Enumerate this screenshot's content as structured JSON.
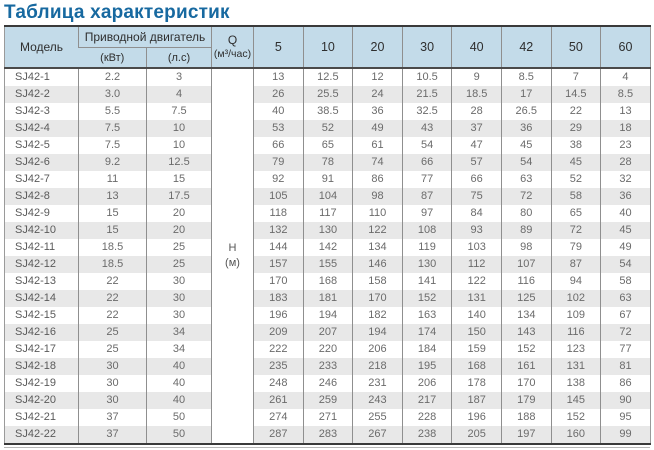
{
  "title": "Таблица характеристик",
  "colors": {
    "title_text": "#1769a0",
    "header_bg": "#c3dbe9",
    "row_stripe": "#e8e8e8",
    "border_dark": "#3a3a3a",
    "grid_line": "#8f8f8f"
  },
  "table": {
    "header": {
      "model": "Модель",
      "motor_group": "Приводной двигатель",
      "motor_kw": "(кВт)",
      "motor_hp": "(л.с)",
      "q_label": "Q",
      "q_unit": "(м³/час)",
      "flow_columns": [
        "5",
        "10",
        "20",
        "30",
        "40",
        "42",
        "50",
        "60"
      ]
    },
    "h_label": "H",
    "h_unit": "(м)",
    "rows": [
      {
        "model": "SJ42-1",
        "kw": "2.2",
        "hp": "3",
        "values": [
          "13",
          "12.5",
          "12",
          "10.5",
          "9",
          "8.5",
          "7",
          "4"
        ]
      },
      {
        "model": "SJ42-2",
        "kw": "3.0",
        "hp": "4",
        "values": [
          "26",
          "25.5",
          "24",
          "21.5",
          "18.5",
          "17",
          "14.5",
          "8.5"
        ]
      },
      {
        "model": "SJ42-3",
        "kw": "5.5",
        "hp": "7.5",
        "values": [
          "40",
          "38.5",
          "36",
          "32.5",
          "28",
          "26.5",
          "22",
          "13"
        ]
      },
      {
        "model": "SJ42-4",
        "kw": "7.5",
        "hp": "10",
        "values": [
          "53",
          "52",
          "49",
          "43",
          "37",
          "36",
          "29",
          "18"
        ]
      },
      {
        "model": "SJ42-5",
        "kw": "7.5",
        "hp": "10",
        "values": [
          "66",
          "65",
          "61",
          "54",
          "47",
          "45",
          "38",
          "23"
        ]
      },
      {
        "model": "SJ42-6",
        "kw": "9.2",
        "hp": "12.5",
        "values": [
          "79",
          "78",
          "74",
          "66",
          "57",
          "54",
          "45",
          "28"
        ]
      },
      {
        "model": "SJ42-7",
        "kw": "11",
        "hp": "15",
        "values": [
          "92",
          "91",
          "86",
          "77",
          "66",
          "63",
          "52",
          "32"
        ]
      },
      {
        "model": "SJ42-8",
        "kw": "13",
        "hp": "17.5",
        "values": [
          "105",
          "104",
          "98",
          "87",
          "75",
          "72",
          "58",
          "36"
        ]
      },
      {
        "model": "SJ42-9",
        "kw": "15",
        "hp": "20",
        "values": [
          "118",
          "117",
          "110",
          "97",
          "84",
          "80",
          "65",
          "40"
        ]
      },
      {
        "model": "SJ42-10",
        "kw": "15",
        "hp": "20",
        "values": [
          "132",
          "130",
          "122",
          "108",
          "93",
          "89",
          "72",
          "45"
        ]
      },
      {
        "model": "SJ42-11",
        "kw": "18.5",
        "hp": "25",
        "values": [
          "144",
          "142",
          "134",
          "119",
          "103",
          "98",
          "79",
          "49"
        ]
      },
      {
        "model": "SJ42-12",
        "kw": "18.5",
        "hp": "25",
        "values": [
          "157",
          "155",
          "146",
          "130",
          "112",
          "107",
          "87",
          "54"
        ]
      },
      {
        "model": "SJ42-13",
        "kw": "22",
        "hp": "30",
        "values": [
          "170",
          "168",
          "158",
          "141",
          "122",
          "116",
          "94",
          "58"
        ]
      },
      {
        "model": "SJ42-14",
        "kw": "22",
        "hp": "30",
        "values": [
          "183",
          "181",
          "170",
          "152",
          "131",
          "125",
          "102",
          "63"
        ]
      },
      {
        "model": "SJ42-15",
        "kw": "22",
        "hp": "30",
        "values": [
          "196",
          "194",
          "182",
          "163",
          "140",
          "134",
          "109",
          "67"
        ]
      },
      {
        "model": "SJ42-16",
        "kw": "25",
        "hp": "34",
        "values": [
          "209",
          "207",
          "194",
          "174",
          "150",
          "143",
          "116",
          "72"
        ]
      },
      {
        "model": "SJ42-17",
        "kw": "25",
        "hp": "34",
        "values": [
          "222",
          "220",
          "206",
          "184",
          "159",
          "152",
          "123",
          "77"
        ]
      },
      {
        "model": "SJ42-18",
        "kw": "30",
        "hp": "40",
        "values": [
          "235",
          "233",
          "218",
          "195",
          "168",
          "161",
          "131",
          "81"
        ]
      },
      {
        "model": "SJ42-19",
        "kw": "30",
        "hp": "40",
        "values": [
          "248",
          "246",
          "231",
          "206",
          "178",
          "170",
          "138",
          "86"
        ]
      },
      {
        "model": "SJ42-20",
        "kw": "30",
        "hp": "40",
        "values": [
          "261",
          "259",
          "243",
          "217",
          "187",
          "179",
          "145",
          "90"
        ]
      },
      {
        "model": "SJ42-21",
        "kw": "37",
        "hp": "50",
        "values": [
          "274",
          "271",
          "255",
          "228",
          "196",
          "188",
          "152",
          "95"
        ]
      },
      {
        "model": "SJ42-22",
        "kw": "37",
        "hp": "50",
        "values": [
          "287",
          "283",
          "267",
          "238",
          "205",
          "197",
          "160",
          "99"
        ]
      }
    ]
  }
}
